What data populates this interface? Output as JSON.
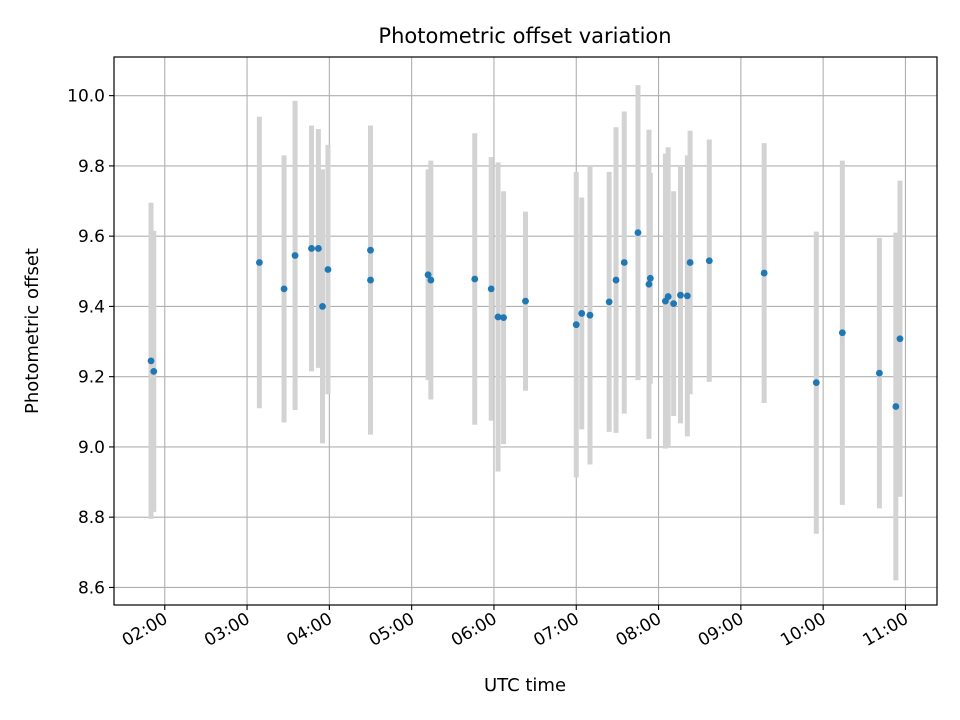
{
  "chart_data": {
    "type": "scatter",
    "title": "Photometric offset variation",
    "xlabel": "UTC time",
    "ylabel": "Photometric offset",
    "x_axis_type": "time",
    "xlim": [
      "01:23",
      "11:23"
    ],
    "ylim": [
      8.55,
      10.11
    ],
    "grid": true,
    "x_ticks": [
      "02:00",
      "03:00",
      "04:00",
      "05:00",
      "06:00",
      "07:00",
      "08:00",
      "09:00",
      "10:00",
      "11:00"
    ],
    "y_ticks": [
      "8.6",
      "8.8",
      "9.0",
      "9.2",
      "9.4",
      "9.6",
      "9.8",
      "10.0"
    ],
    "point_color": "#1f77b4",
    "errorbar_color": "#d3d3d3",
    "series": [
      {
        "points": [
          {
            "x": "01:50",
            "y": 9.245,
            "yerr": 0.45
          },
          {
            "x": "01:52",
            "y": 9.215,
            "yerr": 0.4
          },
          {
            "x": "03:09",
            "y": 9.525,
            "yerr": 0.415
          },
          {
            "x": "03:27",
            "y": 9.45,
            "yerr": 0.38
          },
          {
            "x": "03:35",
            "y": 9.545,
            "yerr": 0.44
          },
          {
            "x": "03:47",
            "y": 9.565,
            "yerr": 0.35
          },
          {
            "x": "03:52",
            "y": 9.565,
            "yerr": 0.34
          },
          {
            "x": "03:55",
            "y": 9.4,
            "yerr": 0.39
          },
          {
            "x": "03:59",
            "y": 9.505,
            "yerr": 0.355
          },
          {
            "x": "04:30",
            "y": 9.475,
            "yerr": 0.44
          },
          {
            "x": "04:30",
            "y": 9.56,
            "yerr": 0.23
          },
          {
            "x": "05:12",
            "y": 9.49,
            "yerr": 0.3
          },
          {
            "x": "05:14",
            "y": 9.475,
            "yerr": 0.34
          },
          {
            "x": "05:46",
            "y": 9.478,
            "yerr": 0.415
          },
          {
            "x": "05:58",
            "y": 9.45,
            "yerr": 0.375
          },
          {
            "x": "06:03",
            "y": 9.37,
            "yerr": 0.44
          },
          {
            "x": "06:07",
            "y": 9.368,
            "yerr": 0.36
          },
          {
            "x": "06:23",
            "y": 9.415,
            "yerr": 0.255
          },
          {
            "x": "07:00",
            "y": 9.348,
            "yerr": 0.435
          },
          {
            "x": "07:04",
            "y": 9.38,
            "yerr": 0.33
          },
          {
            "x": "07:10",
            "y": 9.375,
            "yerr": 0.425
          },
          {
            "x": "07:24",
            "y": 9.413,
            "yerr": 0.37
          },
          {
            "x": "07:29",
            "y": 9.475,
            "yerr": 0.435
          },
          {
            "x": "07:35",
            "y": 9.525,
            "yerr": 0.43
          },
          {
            "x": "07:45",
            "y": 9.61,
            "yerr": 0.42
          },
          {
            "x": "07:53",
            "y": 9.463,
            "yerr": 0.44
          },
          {
            "x": "07:54",
            "y": 9.48,
            "yerr": 0.3
          },
          {
            "x": "08:05",
            "y": 9.415,
            "yerr": 0.42
          },
          {
            "x": "08:07",
            "y": 9.428,
            "yerr": 0.425
          },
          {
            "x": "08:11",
            "y": 9.408,
            "yerr": 0.32
          },
          {
            "x": "08:16",
            "y": 9.432,
            "yerr": 0.365
          },
          {
            "x": "08:21",
            "y": 9.43,
            "yerr": 0.4
          },
          {
            "x": "08:23",
            "y": 9.525,
            "yerr": 0.375
          },
          {
            "x": "08:37",
            "y": 9.53,
            "yerr": 0.345
          },
          {
            "x": "09:17",
            "y": 9.495,
            "yerr": 0.37
          },
          {
            "x": "09:55",
            "y": 9.183,
            "yerr": 0.43
          },
          {
            "x": "10:14",
            "y": 9.325,
            "yerr": 0.49
          },
          {
            "x": "10:41",
            "y": 9.21,
            "yerr": 0.385
          },
          {
            "x": "10:53",
            "y": 9.115,
            "yerr": 0.495
          },
          {
            "x": "10:56",
            "y": 9.308,
            "yerr": 0.45
          }
        ]
      }
    ]
  }
}
